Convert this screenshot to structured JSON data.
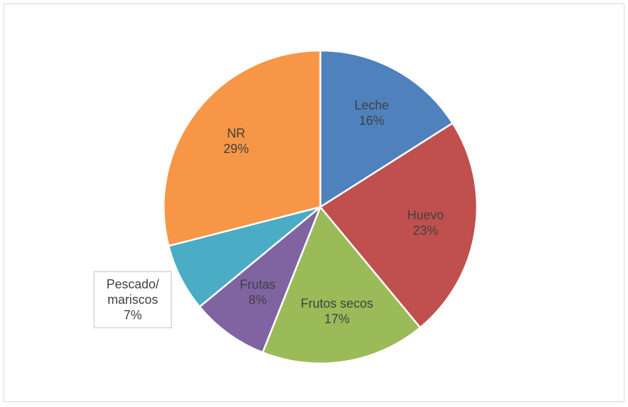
{
  "chart_data": {
    "type": "pie",
    "title": "",
    "start_angle_deg": 0,
    "direction": "clockwise",
    "legend": "none",
    "label_text_color": "#404040",
    "slice_border_color": "#ffffff",
    "slices": [
      {
        "label": "Leche",
        "value": 16,
        "value_label": "16%",
        "color": "#4f81bd"
      },
      {
        "label": "Huevo",
        "value": 23,
        "value_label": "23%",
        "color": "#c0504d"
      },
      {
        "label": "Frutos secos",
        "value": 17,
        "value_label": "17%",
        "color": "#9bbb59"
      },
      {
        "label": "Frutas",
        "value": 8,
        "value_label": "8%",
        "color": "#8064a2"
      },
      {
        "label": "Pescado/\nmariscos",
        "value": 7,
        "value_label": "7%",
        "color": "#4bacc6",
        "label_outside_box": true
      },
      {
        "label": "NR",
        "value": 29,
        "value_label": "29%",
        "color": "#f79646"
      }
    ]
  }
}
